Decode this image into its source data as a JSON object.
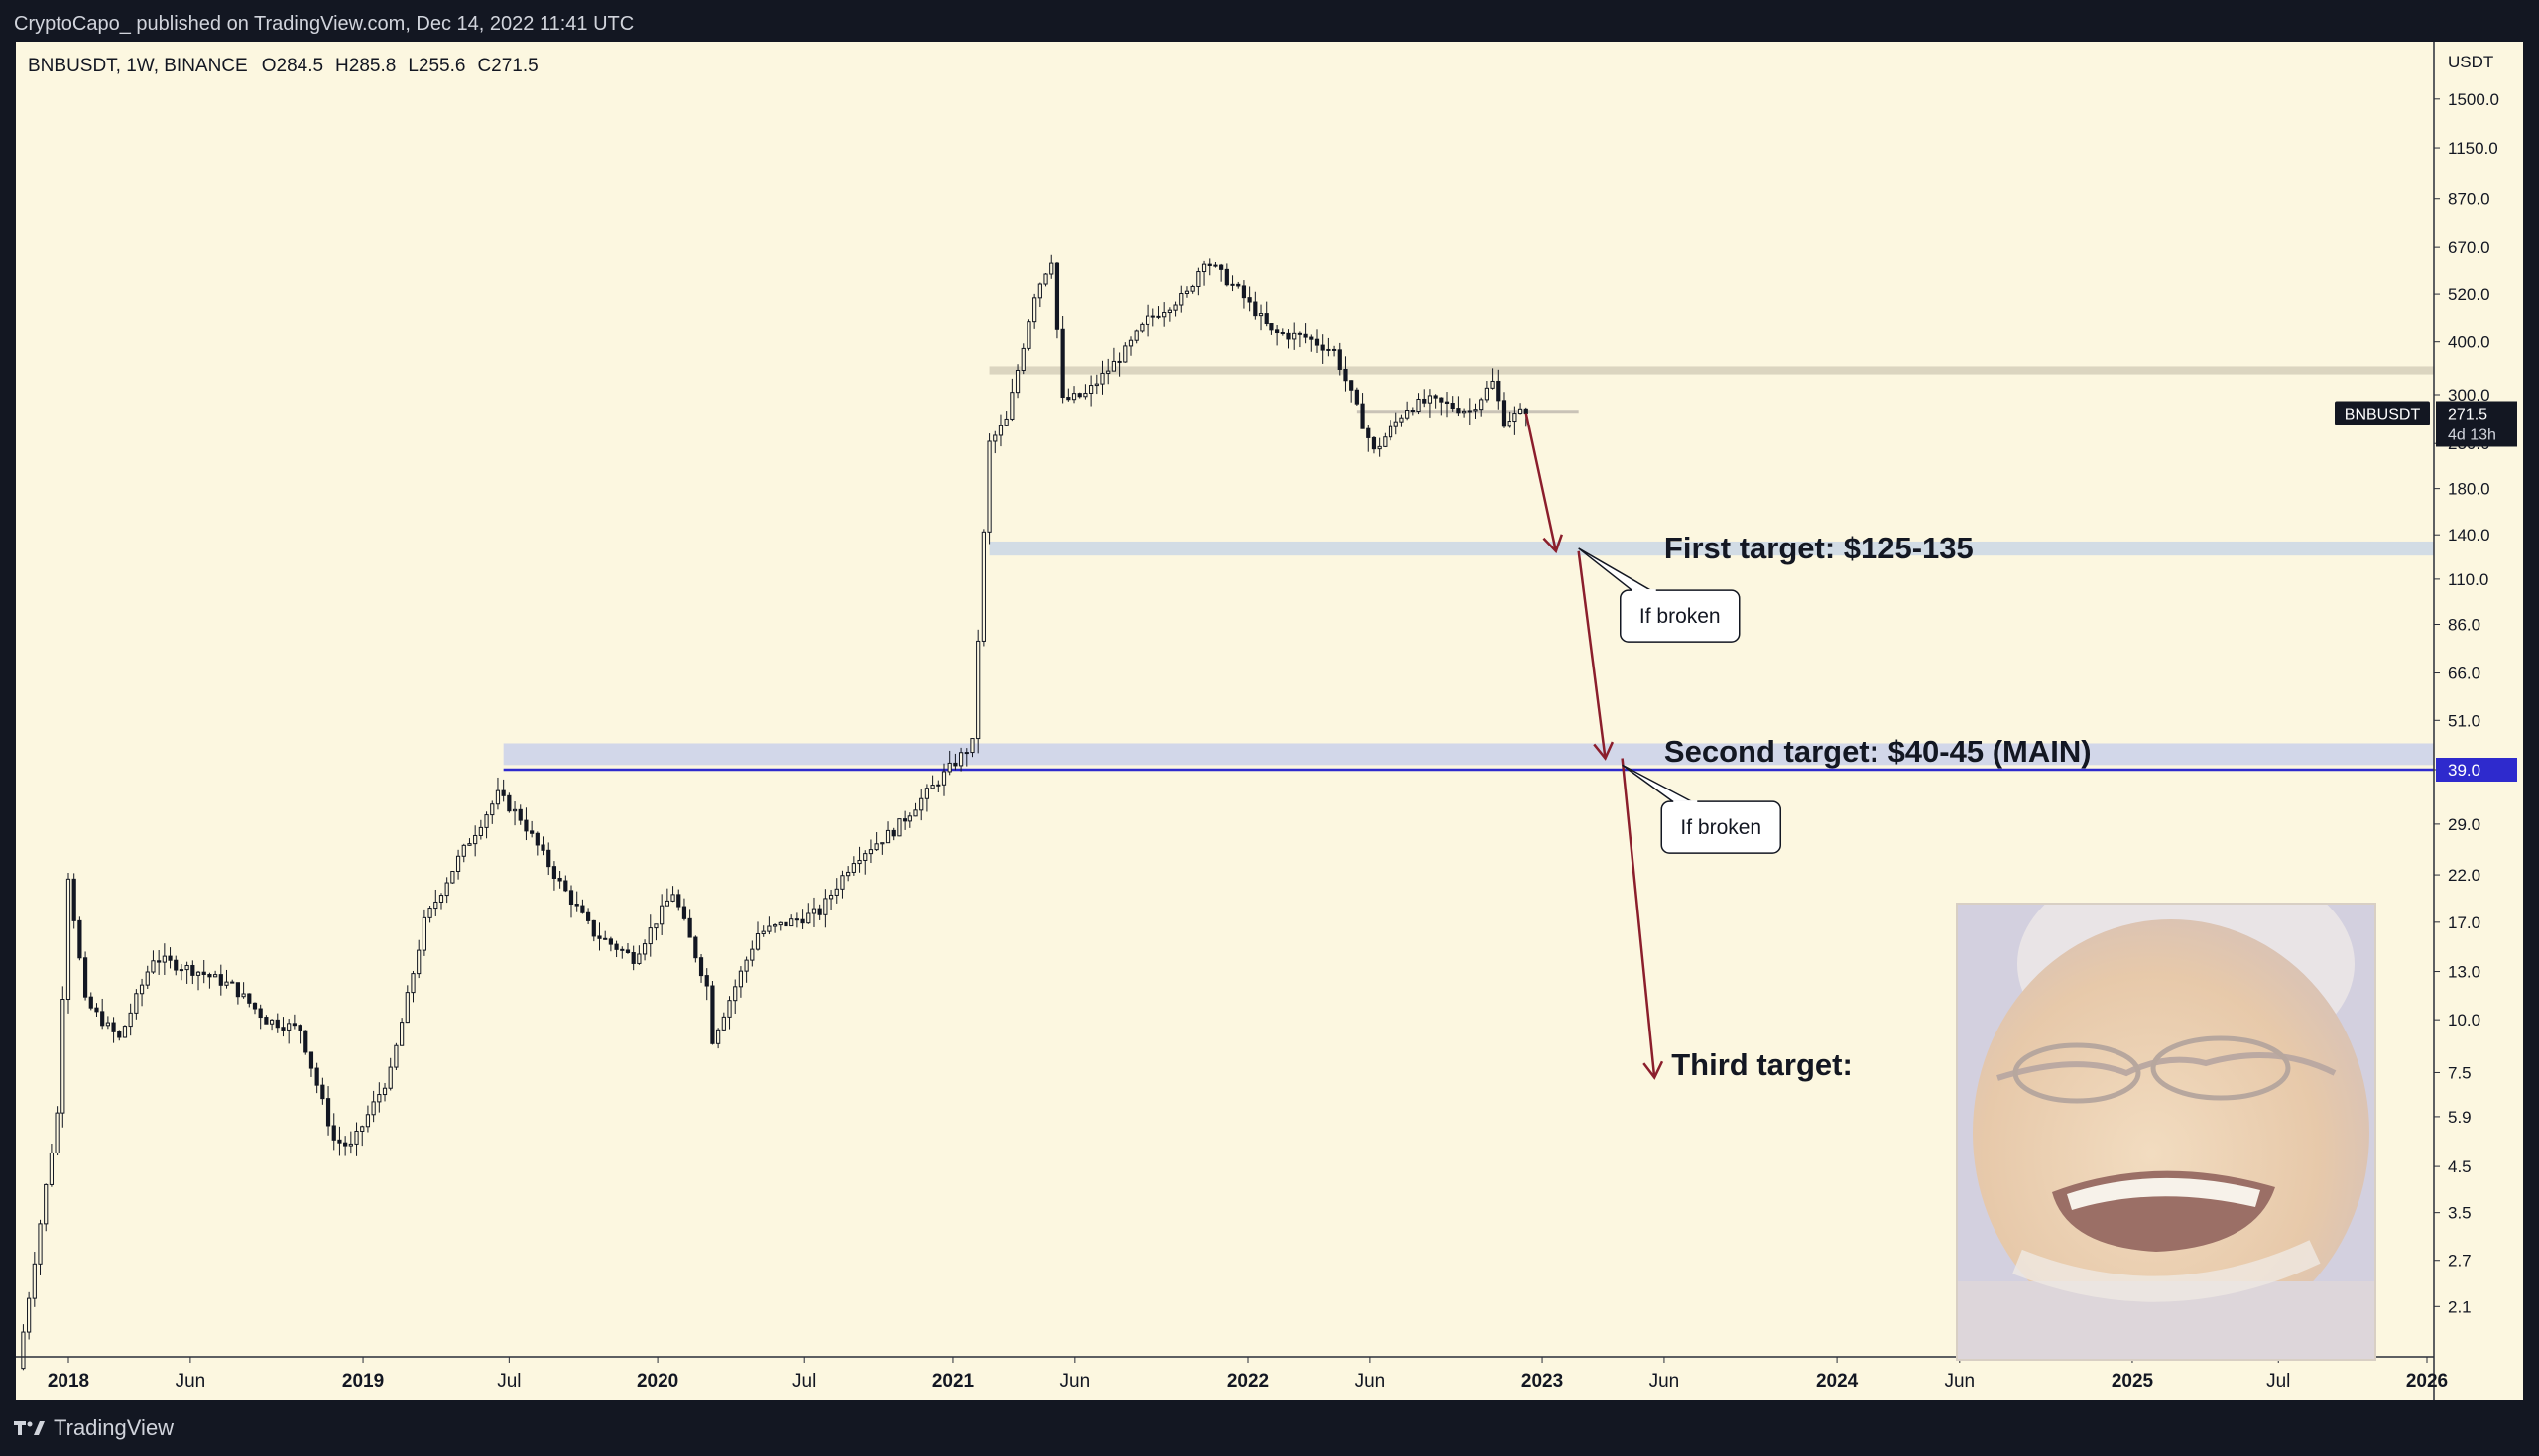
{
  "header": {
    "published": "CryptoCapo_ published on TradingView.com, Dec 14, 2022 11:41 UTC"
  },
  "footer": {
    "brand": "TradingView"
  },
  "chart_data": {
    "type": "candlestick",
    "symbol_line": "BNBUSDT, 1W, BINANCE",
    "ohlc": {
      "open": "O284.5",
      "high": "H285.8",
      "low": "L255.6",
      "close": "C271.5"
    },
    "y_scale": "log",
    "currency": "USDT",
    "y_ticks": [
      "1500.0",
      "1150.0",
      "870.0",
      "670.0",
      "520.0",
      "400.0",
      "300.0",
      "230.0",
      "180.0",
      "140.0",
      "110.0",
      "86.0",
      "66.0",
      "51.0",
      "39.0",
      "29.0",
      "22.0",
      "17.0",
      "13.0",
      "10.0",
      "7.5",
      "5.9",
      "4.5",
      "3.5",
      "2.7",
      "2.1"
    ],
    "x_ticks": [
      {
        "label": "2018",
        "bold": true
      },
      {
        "label": "Jun",
        "bold": false
      },
      {
        "label": "2019",
        "bold": true
      },
      {
        "label": "Jul",
        "bold": false
      },
      {
        "label": "2020",
        "bold": true
      },
      {
        "label": "Jul",
        "bold": false
      },
      {
        "label": "2021",
        "bold": true
      },
      {
        "label": "Jun",
        "bold": false
      },
      {
        "label": "2022",
        "bold": true
      },
      {
        "label": "Jun",
        "bold": false
      },
      {
        "label": "2023",
        "bold": true
      },
      {
        "label": "Jun",
        "bold": false
      },
      {
        "label": "2024",
        "bold": true
      },
      {
        "label": "Jun",
        "bold": false
      },
      {
        "label": "2025",
        "bold": true
      },
      {
        "label": "Jul",
        "bold": false
      },
      {
        "label": "2026",
        "bold": true
      }
    ],
    "price_path": [
      [
        "2017-11-06",
        1.5
      ],
      [
        "2017-12-25",
        6
      ],
      [
        "2018-01-08",
        22
      ],
      [
        "2018-01-29",
        11
      ],
      [
        "2018-03-12",
        9
      ],
      [
        "2018-04-23",
        14
      ],
      [
        "2018-06-18",
        13
      ],
      [
        "2018-07-30",
        12
      ],
      [
        "2018-09-10",
        10
      ],
      [
        "2018-10-22",
        9.5
      ],
      [
        "2018-12-03",
        5.2
      ],
      [
        "2018-12-24",
        5.0
      ],
      [
        "2019-02-11",
        7.5
      ],
      [
        "2019-03-25",
        17
      ],
      [
        "2019-05-06",
        24
      ],
      [
        "2019-06-24",
        34
      ],
      [
        "2019-07-22",
        30
      ],
      [
        "2019-09-09",
        21
      ],
      [
        "2019-10-21",
        16
      ],
      [
        "2019-12-09",
        14
      ],
      [
        "2020-01-27",
        20
      ],
      [
        "2020-03-09",
        12
      ],
      [
        "2020-03-16",
        9
      ],
      [
        "2020-05-11",
        16
      ],
      [
        "2020-07-27",
        18
      ],
      [
        "2020-09-07",
        24
      ],
      [
        "2020-10-26",
        28
      ],
      [
        "2020-12-28",
        38
      ],
      [
        "2021-02-01",
        45
      ],
      [
        "2021-02-15",
        140
      ],
      [
        "2021-02-22",
        230
      ],
      [
        "2021-03-15",
        260
      ],
      [
        "2021-04-19",
        520
      ],
      [
        "2021-05-10",
        630
      ],
      [
        "2021-05-24",
        290
      ],
      [
        "2021-06-21",
        300
      ],
      [
        "2021-08-09",
        380
      ],
      [
        "2021-09-06",
        450
      ],
      [
        "2021-10-25",
        520
      ],
      [
        "2021-11-15",
        630
      ],
      [
        "2021-12-27",
        530
      ],
      [
        "2022-02-07",
        420
      ],
      [
        "2022-03-21",
        410
      ],
      [
        "2022-04-25",
        380
      ],
      [
        "2022-05-16",
        300
      ],
      [
        "2022-06-13",
        220
      ],
      [
        "2022-07-25",
        280
      ],
      [
        "2022-08-22",
        290
      ],
      [
        "2022-10-10",
        275
      ],
      [
        "2022-11-07",
        320
      ],
      [
        "2022-11-21",
        260
      ],
      [
        "2022-12-12",
        271.5
      ]
    ],
    "candle_range": {
      "first_week": "2017-11-06",
      "last_week": "2022-12-12",
      "volatility_pct": 6
    },
    "levels": [
      {
        "name": "resistance-zone",
        "low": 335,
        "high": 350,
        "start": "2021-02-15",
        "end": "2026-04-01",
        "color": "#d7d0bc"
      },
      {
        "name": "first-target-zone",
        "low": 125,
        "high": 135,
        "start": "2021-02-15",
        "end": "2026-04-01",
        "color": "#cdd8e6"
      },
      {
        "name": "second-target-zone",
        "low": 40,
        "high": 45,
        "start": "2019-06-24",
        "end": "2026-04-01",
        "color": "#cdd3ea"
      },
      {
        "name": "range-line",
        "low": 274,
        "high": 274,
        "start": "2022-05-16",
        "end": "2023-02-15",
        "color": "#c9c3b7"
      }
    ],
    "horizontal_line": {
      "value": 39.0,
      "label": "39.0",
      "color": "#2e2acd"
    },
    "last_price": {
      "value": 271.5,
      "symbol": "BNBUSDT",
      "label": "271.5",
      "countdown": "4d 13h"
    },
    "arrows": [
      {
        "from": [
          "2022-12-12",
          271.5
        ],
        "to": [
          "2023-01-18",
          128
        ]
      },
      {
        "from": [
          "2023-02-15",
          128
        ],
        "to": [
          "2023-03-20",
          41.5
        ]
      },
      {
        "from": [
          "2023-04-10",
          41.5
        ],
        "to": [
          "2023-05-20",
          7.3
        ]
      }
    ],
    "annotations": [
      {
        "text": "First target: $125-135",
        "x": "2023-06-01",
        "y": 130,
        "style": "large"
      },
      {
        "text": "Second target: $40-45 (MAIN)",
        "x": "2023-06-01",
        "y": 43,
        "style": "large"
      },
      {
        "text": "Third target:",
        "x": "2023-06-10",
        "y": 7.8,
        "style": "large"
      },
      {
        "text": "If broken",
        "x": "2023-04-20",
        "y": 90,
        "pointer": [
          "2023-02-15",
          130
        ],
        "style": "callout"
      },
      {
        "text": "If broken",
        "x": "2023-06-10",
        "y": 28.5,
        "pointer": [
          "2023-04-10",
          40
        ],
        "style": "callout"
      }
    ]
  }
}
